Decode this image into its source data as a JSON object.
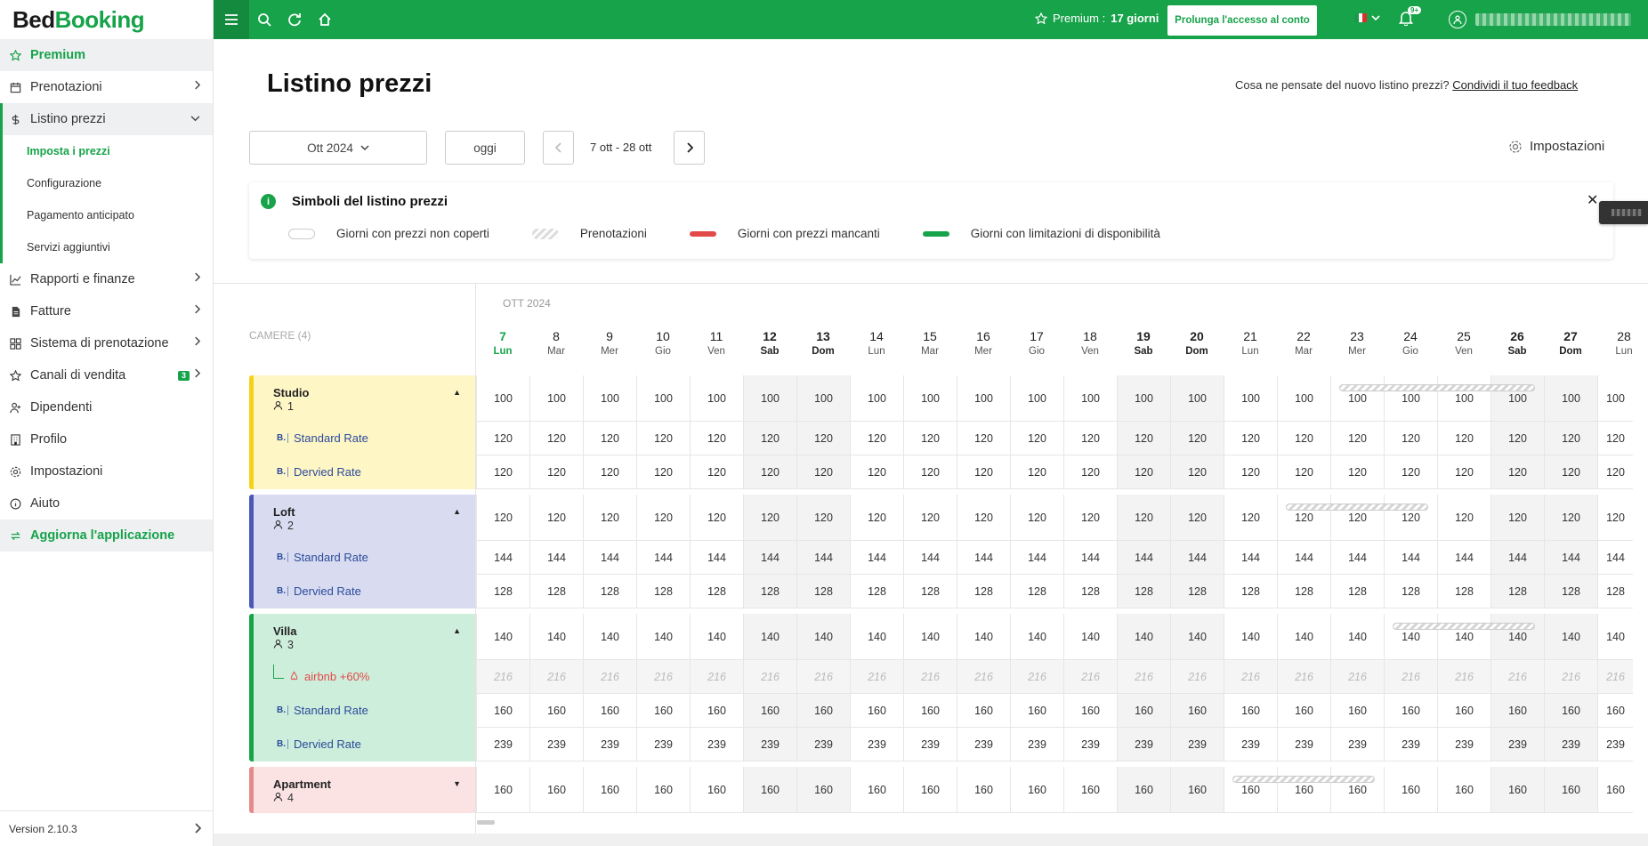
{
  "brand": {
    "part1": "Bed",
    "part2": "Booking"
  },
  "sidebar": {
    "items": [
      {
        "label": "Premium",
        "icon": "star-icon"
      },
      {
        "label": "Prenotazioni",
        "icon": "calendar-icon"
      },
      {
        "label": "Listino prezzi",
        "icon": "dollar-icon"
      },
      {
        "label": "Rapporti e finanze",
        "icon": "chart-icon"
      },
      {
        "label": "Fatture",
        "icon": "invoice-icon"
      },
      {
        "label": "Sistema di prenotazione",
        "icon": "grid-icon"
      },
      {
        "label": "Canali di vendita",
        "icon": "star-outline-icon",
        "badge": "3"
      },
      {
        "label": "Dipendenti",
        "icon": "add-user-icon"
      },
      {
        "label": "Profilo",
        "icon": "building-icon"
      },
      {
        "label": "Impostazioni",
        "icon": "gear-icon"
      },
      {
        "label": "Aiuto",
        "icon": "info-icon"
      },
      {
        "label": "Aggiorna l'applicazione",
        "icon": "refresh-icon"
      }
    ],
    "subitems": [
      "Imposta i prezzi",
      "Configurazione",
      "Pagamento anticipato",
      "Servizi aggiuntivi"
    ],
    "version": "Version 2.10.3"
  },
  "topbar": {
    "premium_prefix": "Premium : ",
    "premium_days": "17 giorni",
    "extend_button": "Prolunga l'accesso al conto",
    "notifications_count": "9+"
  },
  "main": {
    "title": "Listino prezzi",
    "feedback_text": "Cosa ne pensate del nuovo listino prezzi? ",
    "feedback_link": "Condividi il tuo feedback",
    "month_select": "Ott 2024",
    "today_button": "oggi",
    "date_range": "7 ott - 28 ott",
    "settings_label": "Impostazioni"
  },
  "legend": {
    "title": "Simboli del listino prezzi",
    "items": [
      "Giorni con prezzi non coperti",
      "Prenotazioni",
      "Giorni con prezzi mancanti",
      "Giorni con limitazioni di disponibilità"
    ],
    "colors": {
      "missing": "#e24a4a",
      "limited": "#17a34a"
    }
  },
  "calendar": {
    "month_label": "OTT 2024",
    "rooms_label": "CAMERE (4)",
    "days": [
      {
        "d": "7",
        "w": "Lun"
      },
      {
        "d": "8",
        "w": "Mar"
      },
      {
        "d": "9",
        "w": "Mer"
      },
      {
        "d": "10",
        "w": "Gio"
      },
      {
        "d": "11",
        "w": "Ven"
      },
      {
        "d": "12",
        "w": "Sab"
      },
      {
        "d": "13",
        "w": "Dom"
      },
      {
        "d": "14",
        "w": "Lun"
      },
      {
        "d": "15",
        "w": "Mar"
      },
      {
        "d": "16",
        "w": "Mer"
      },
      {
        "d": "17",
        "w": "Gio"
      },
      {
        "d": "18",
        "w": "Ven"
      },
      {
        "d": "19",
        "w": "Sab"
      },
      {
        "d": "20",
        "w": "Dom"
      },
      {
        "d": "21",
        "w": "Lun"
      },
      {
        "d": "22",
        "w": "Mar"
      },
      {
        "d": "23",
        "w": "Mer"
      },
      {
        "d": "24",
        "w": "Gio"
      },
      {
        "d": "25",
        "w": "Ven"
      },
      {
        "d": "26",
        "w": "Sab"
      },
      {
        "d": "27",
        "w": "Dom"
      },
      {
        "d": "28",
        "w": "Lun"
      }
    ],
    "rooms": [
      {
        "name": "Studio",
        "capacity": "1",
        "color": "#fff6c6",
        "accent": "#f4d21a",
        "expanded": true,
        "rows": [
          {
            "label": "",
            "value": "100"
          },
          {
            "label": "Standard Rate",
            "value": "120",
            "type": "rate"
          },
          {
            "label": "Dervied Rate",
            "value": "120",
            "type": "rate"
          }
        ]
      },
      {
        "name": "Loft",
        "capacity": "2",
        "color": "#d9dcf1",
        "accent": "#4a58b8",
        "expanded": true,
        "rows": [
          {
            "label": "",
            "value": "120"
          },
          {
            "label": "Standard Rate",
            "value": "144",
            "type": "rate"
          },
          {
            "label": "Dervied Rate",
            "value": "128",
            "type": "rate"
          }
        ]
      },
      {
        "name": "Villa",
        "capacity": "3",
        "color": "#cdeedb",
        "accent": "#17a34a",
        "expanded": true,
        "rows": [
          {
            "label": "",
            "value": "140"
          },
          {
            "label": "airbnb +60%",
            "value": "216",
            "type": "airbnb"
          },
          {
            "label": "Standard Rate",
            "value": "160",
            "type": "rate"
          },
          {
            "label": "Dervied Rate",
            "value": "239",
            "type": "rate"
          }
        ]
      },
      {
        "name": "Apartment",
        "capacity": "4",
        "color": "#fbe3e3",
        "accent": "#e48a8a",
        "expanded": false,
        "rows": [
          {
            "label": "",
            "value": "160"
          }
        ]
      }
    ]
  }
}
